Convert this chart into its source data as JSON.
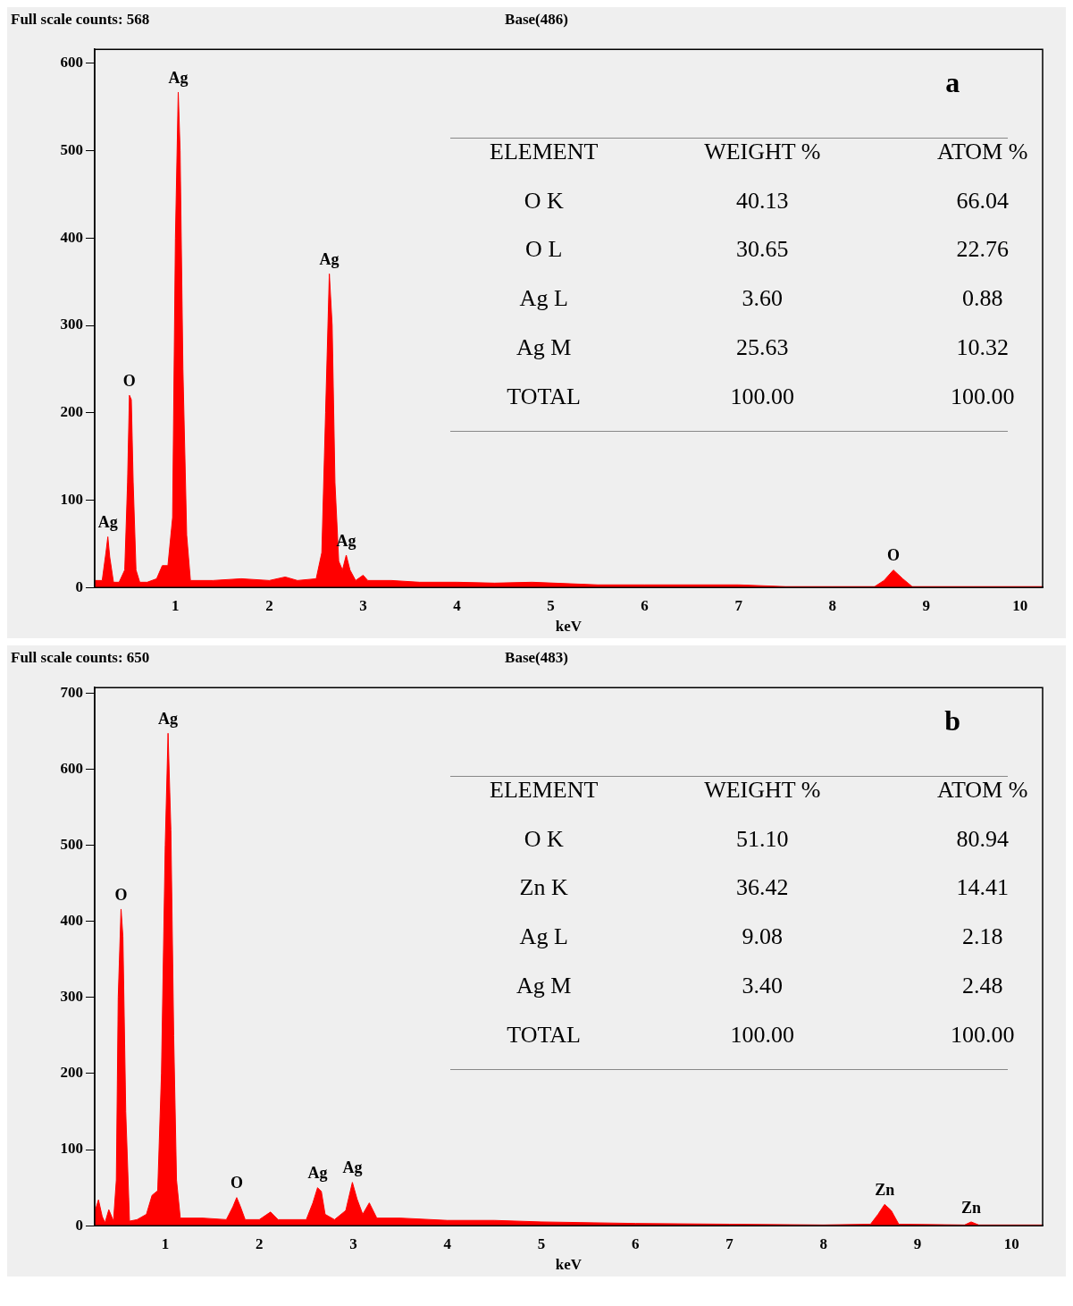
{
  "chart_data": [
    {
      "type": "area",
      "title": "Full scale counts: 568",
      "subtitle": "Base(486)",
      "xlabel": "keV",
      "xlim": [
        0.14,
        10.24
      ],
      "ylim": [
        0,
        616
      ],
      "xticks": [
        1,
        2,
        3,
        4,
        5,
        6,
        7,
        8,
        9,
        10
      ],
      "yticks": [
        0,
        100,
        200,
        300,
        400,
        500,
        600
      ],
      "grid": false,
      "legend": false,
      "series": [
        {
          "color": "#ff0000",
          "x": [
            0.14,
            0.22,
            0.26,
            0.28,
            0.3,
            0.34,
            0.4,
            0.46,
            0.49,
            0.51,
            0.53,
            0.55,
            0.58,
            0.62,
            0.7,
            0.8,
            0.86,
            0.92,
            0.97,
            1.0,
            1.03,
            1.05,
            1.08,
            1.12,
            1.16,
            1.4,
            1.7,
            2.0,
            2.17,
            2.3,
            2.5,
            2.56,
            2.6,
            2.64,
            2.67,
            2.7,
            2.74,
            2.78,
            2.82,
            2.86,
            2.92,
            3.0,
            3.05,
            3.3,
            3.6,
            4.0,
            4.4,
            4.8,
            5.5,
            6.0,
            7.0,
            7.5,
            8.0,
            8.45,
            8.55,
            8.65,
            8.75,
            8.85,
            9.5,
            10.24
          ],
          "values": [
            8,
            8,
            40,
            58,
            35,
            6,
            6,
            20,
            120,
            220,
            215,
            120,
            20,
            6,
            6,
            10,
            25,
            25,
            80,
            400,
            567,
            500,
            250,
            60,
            8,
            8,
            10,
            8,
            12,
            8,
            10,
            40,
            200,
            359,
            300,
            120,
            30,
            20,
            37,
            20,
            8,
            14,
            8,
            8,
            6,
            6,
            5,
            6,
            3,
            3,
            3,
            1,
            1,
            1,
            8,
            20,
            10,
            1,
            1,
            1
          ]
        }
      ],
      "annotations": [
        {
          "text": "Ag",
          "x": 0.28,
          "y": 58
        },
        {
          "text": "O",
          "x": 0.51,
          "y": 220
        },
        {
          "text": "Ag",
          "x": 1.03,
          "y": 567
        },
        {
          "text": "Ag",
          "x": 2.64,
          "y": 359
        },
        {
          "text": "Ag",
          "x": 2.82,
          "y": 37
        },
        {
          "text": "O",
          "x": 8.65,
          "y": 20
        },
        "a",
        "ELEMENT",
        "WEIGHT %",
        "ATOM %",
        "O K",
        "40.13",
        "66.04",
        "O L",
        "30.65",
        "22.76",
        "Ag L",
        "3.60",
        "0.88",
        "Ag M",
        "25.63",
        "10.32",
        "TOTAL",
        "100.00",
        "100.00"
      ]
    },
    {
      "type": "area",
      "title": "Full scale counts: 650",
      "subtitle": "Base(483)",
      "xlabel": "keV",
      "xlim": [
        0.25,
        10.33
      ],
      "ylim": [
        0,
        707
      ],
      "xticks": [
        1,
        2,
        3,
        4,
        5,
        6,
        7,
        8,
        9,
        10
      ],
      "yticks": [
        0,
        100,
        200,
        300,
        400,
        500,
        600,
        700
      ],
      "grid": false,
      "legend": false,
      "series": [
        {
          "color": "#ff0000",
          "x": [
            0.25,
            0.29,
            0.33,
            0.36,
            0.4,
            0.45,
            0.48,
            0.5,
            0.53,
            0.55,
            0.58,
            0.62,
            0.7,
            0.8,
            0.86,
            0.92,
            0.96,
            1.0,
            1.03,
            1.06,
            1.09,
            1.12,
            1.16,
            1.4,
            1.65,
            1.72,
            1.76,
            1.8,
            1.85,
            2.0,
            2.12,
            2.2,
            2.5,
            2.57,
            2.62,
            2.66,
            2.7,
            2.8,
            2.92,
            2.99,
            3.04,
            3.1,
            3.17,
            3.25,
            3.5,
            4.0,
            4.5,
            5.0,
            6.0,
            7.0,
            8.0,
            8.5,
            8.58,
            8.65,
            8.72,
            8.8,
            9.5,
            9.57,
            9.65,
            10.33
          ],
          "values": [
            18,
            34,
            12,
            4,
            21,
            6,
            60,
            300,
            416,
            380,
            150,
            6,
            8,
            15,
            40,
            46,
            200,
            500,
            647,
            520,
            250,
            60,
            10,
            10,
            8,
            25,
            37,
            25,
            8,
            8,
            18,
            8,
            8,
            30,
            50,
            45,
            15,
            8,
            20,
            57,
            35,
            15,
            30,
            10,
            10,
            7,
            7,
            5,
            3,
            2,
            1,
            2,
            15,
            28,
            20,
            2,
            1,
            5,
            1,
            1
          ]
        }
      ],
      "annotations": [
        {
          "text": "Ag",
          "x": 1.03,
          "y": 647
        },
        {
          "text": "O",
          "x": 0.53,
          "y": 416
        },
        {
          "text": "O",
          "x": 1.76,
          "y": 37
        },
        {
          "text": "Ag",
          "x": 2.62,
          "y": 50
        },
        {
          "text": "Ag",
          "x": 2.99,
          "y": 57
        },
        {
          "text": "Zn",
          "x": 8.65,
          "y": 28
        },
        {
          "text": "Zn",
          "x": 9.57,
          "y": 5
        },
        "b",
        "ELEMENT",
        "WEIGHT %",
        "ATOM %",
        "O K",
        "51.10",
        "80.94",
        "Zn K",
        "36.42",
        "14.41",
        "Ag L",
        "9.08",
        "2.18",
        "Ag M",
        "3.40",
        "2.48",
        "TOTAL",
        "100.00",
        "100.00"
      ]
    }
  ]
}
